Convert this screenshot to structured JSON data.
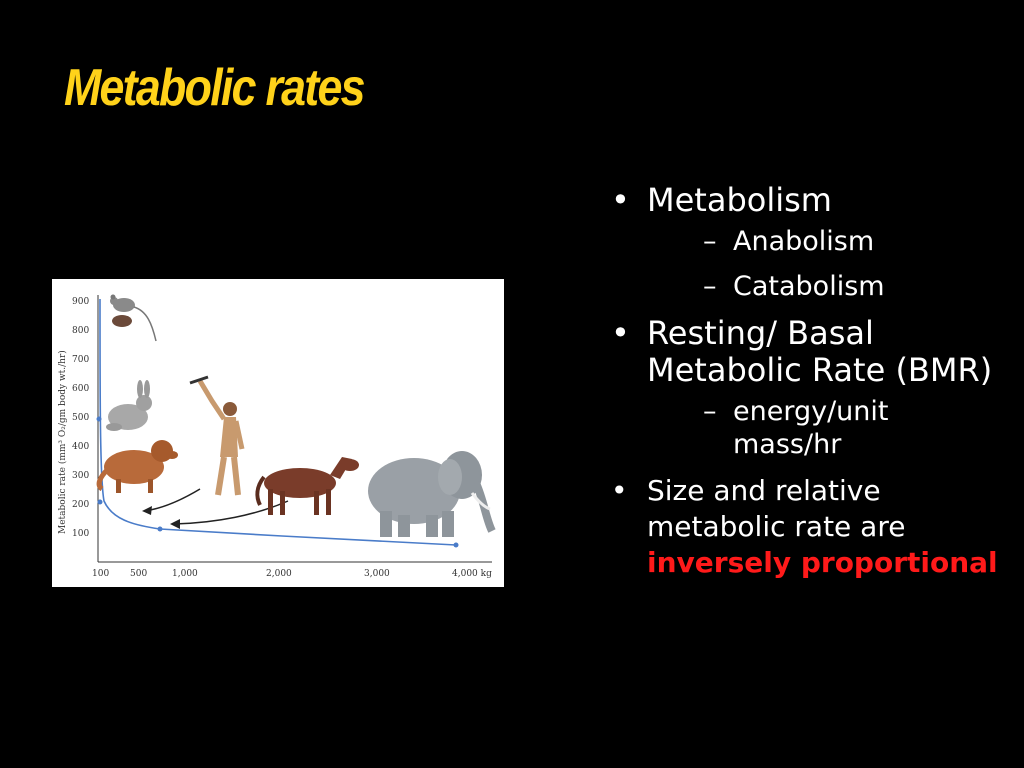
{
  "slide": {
    "title": "Metabolic rates",
    "bullets": [
      {
        "text": "Metabolism",
        "sub": [
          "Anabolism",
          "Catabolism"
        ]
      },
      {
        "text": "Resting/ Basal Metabolic Rate (BMR)",
        "sub": [
          "energy/unit mass/hr"
        ]
      },
      {
        "text": "Size and relative metabolic rate are",
        "emphasis": "inversely proportional"
      }
    ],
    "colors": {
      "background": "#000000",
      "title": "#ffd21a",
      "emphasis": "#ff1a1a"
    }
  },
  "figure": {
    "ylabel": "Metabolic rate (mm³ O₂/gm body wt./hr)",
    "xticks": [
      "100",
      "500",
      "1,000",
      "2,000",
      "3,000",
      "4,000 kg"
    ],
    "yticks": [
      "100",
      "200",
      "300",
      "400",
      "500",
      "600",
      "700",
      "800",
      "900"
    ],
    "animals": [
      "mouse-icon",
      "rabbit-icon",
      "dog-icon",
      "human-icon",
      "horse-icon",
      "elephant-icon"
    ]
  }
}
